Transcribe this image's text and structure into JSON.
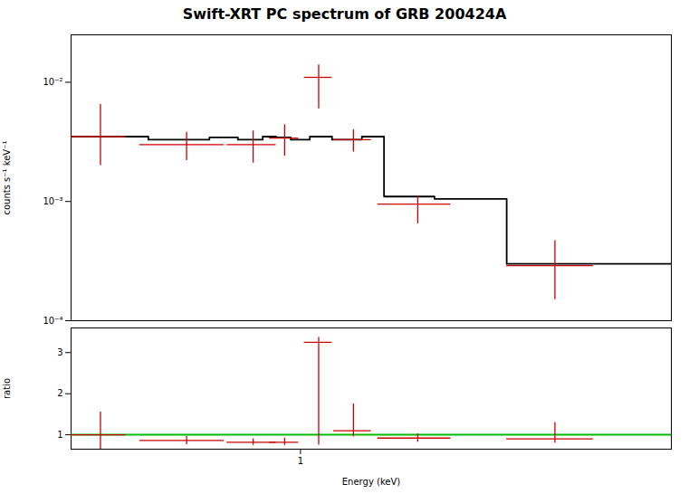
{
  "chart_data": [
    {
      "type": "step",
      "title": "Swift-XRT PC spectrum of GRB 200424A",
      "ylabel": "counts s⁻¹ keV⁻¹",
      "log": true,
      "xlim": [
        0.3,
        7.0
      ],
      "ylim": [
        0.0001,
        0.025
      ],
      "yticks": [
        {
          "value": 0.0001,
          "label": "10⁻⁴"
        },
        {
          "value": 0.001,
          "label": "10⁻³"
        },
        {
          "value": 0.01,
          "label": "10⁻²"
        }
      ],
      "tick_labels": "y",
      "series": [
        {
          "type": "step",
          "color": "#000000",
          "bins": [
            0.3,
            0.45,
            0.62,
            0.72,
            0.82,
            0.88,
            0.95,
            1.05,
            1.18,
            1.38,
            1.55,
            2.02,
            2.95,
            7.0
          ],
          "values": [
            0.0035,
            0.0033,
            0.00345,
            0.0033,
            0.0035,
            0.00345,
            0.0033,
            0.0035,
            0.0033,
            0.0035,
            0.0011,
            0.00105,
            0.0003
          ]
        },
        {
          "type": "errorbar",
          "color": "#cc0000",
          "x": [
            0.35,
            0.55,
            0.78,
            0.92,
            1.1,
            1.32,
            1.85,
            3.8
          ],
          "xerr_lo": [
            0.05,
            0.12,
            0.1,
            0.07,
            0.08,
            0.13,
            0.35,
            0.85
          ],
          "xerr_hi": [
            0.05,
            0.12,
            0.1,
            0.07,
            0.08,
            0.13,
            0.35,
            0.85
          ],
          "values": [
            0.0035,
            0.003,
            0.003,
            0.0034,
            0.011,
            0.0033,
            0.00095,
            0.00029
          ],
          "yerr_lo": [
            0.0015,
            0.0008,
            0.0009,
            0.001,
            0.005,
            0.0007,
            0.0003,
            0.00014
          ],
          "yerr_hi": [
            0.003,
            0.0008,
            0.0009,
            0.001,
            0.003,
            0.0007,
            0.00015,
            0.00018
          ]
        }
      ]
    },
    {
      "type": "errorbar",
      "xlabel": "Energy (keV)",
      "ylabel": "ratio",
      "log": "x",
      "xlim": [
        0.3,
        7.0
      ],
      "ylim": [
        0.65,
        3.6
      ],
      "xticks": [
        1
      ],
      "yticks": [
        1,
        2,
        3
      ],
      "reference_line": {
        "value": 1.0,
        "color": "#00bb00"
      },
      "series": [
        {
          "type": "errorbar",
          "color": "#cc0000",
          "x": [
            0.35,
            0.55,
            0.78,
            0.92,
            1.1,
            1.32,
            1.85,
            3.8
          ],
          "xerr_lo": [
            0.05,
            0.12,
            0.1,
            0.07,
            0.08,
            0.13,
            0.35,
            0.85
          ],
          "xerr_hi": [
            0.05,
            0.12,
            0.1,
            0.07,
            0.08,
            0.13,
            0.35,
            0.85
          ],
          "values": [
            1.0,
            0.86,
            0.82,
            0.82,
            3.25,
            1.1,
            0.92,
            0.9
          ],
          "yerr_lo": [
            0.35,
            0.1,
            0.08,
            0.08,
            2.5,
            0.15,
            0.1,
            0.1
          ],
          "yerr_hi": [
            0.55,
            0.1,
            0.08,
            0.1,
            0.12,
            0.65,
            0.1,
            0.4
          ]
        }
      ]
    }
  ]
}
